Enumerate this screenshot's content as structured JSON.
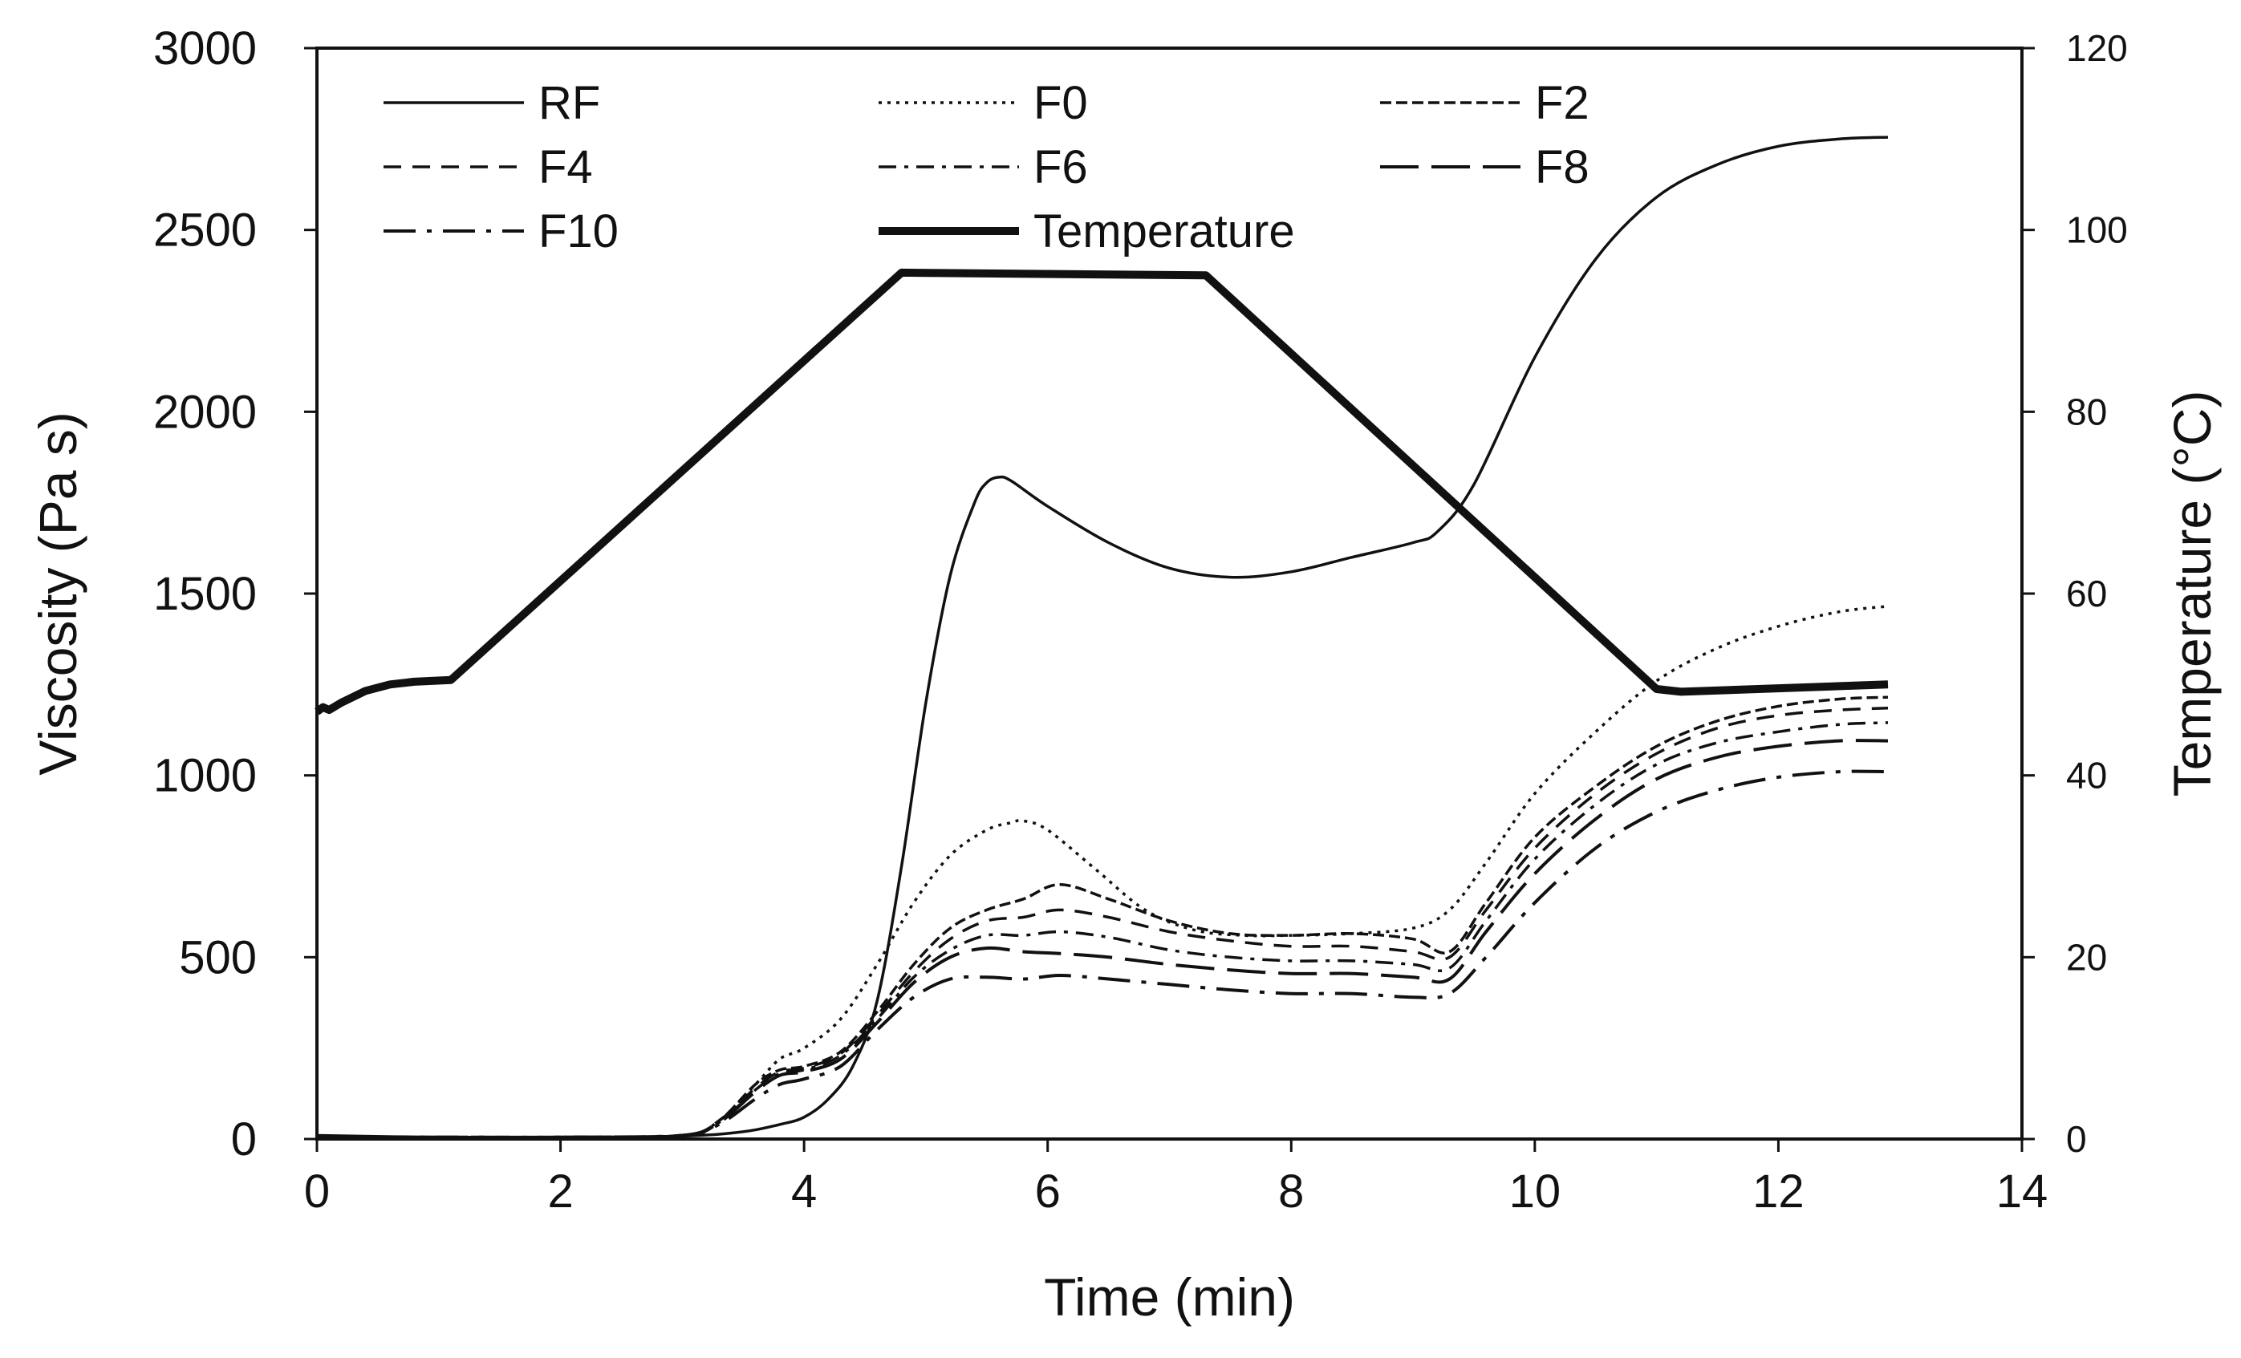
{
  "chart_data": {
    "type": "line",
    "title": "",
    "xlabel": "Time (min)",
    "ylabel": "Viscosity (Pa s)",
    "y2label": "Temperature (°C)",
    "xlim": [
      0,
      14
    ],
    "ylim": [
      0,
      3000
    ],
    "y2lim": [
      0,
      120
    ],
    "xticks": [
      "0",
      "2",
      "4",
      "6",
      "8",
      "10",
      "12",
      "14"
    ],
    "yticks": [
      "0",
      "500",
      "1000",
      "1500",
      "2000",
      "2500",
      "3000"
    ],
    "y2ticks": [
      "0",
      "20",
      "40",
      "60",
      "80",
      "100",
      "120"
    ],
    "grid": false,
    "legend_position": "top-left, inside plot",
    "series": [
      {
        "name": "RF",
        "axis": "left",
        "style": "solid",
        "x": [
          0,
          1,
          2,
          3,
          3.5,
          3.8,
          4,
          4.2,
          4.4,
          4.6,
          4.8,
          5.0,
          5.2,
          5.4,
          5.5,
          5.6,
          5.7,
          6.0,
          6.5,
          7.0,
          7.5,
          8.0,
          8.5,
          9.0,
          9.2,
          9.5,
          10.0,
          10.5,
          11.0,
          11.5,
          12.0,
          12.5,
          12.9
        ],
        "values": [
          10,
          5,
          5,
          8,
          20,
          40,
          60,
          110,
          200,
          380,
          750,
          1200,
          1550,
          1750,
          1805,
          1820,
          1810,
          1740,
          1640,
          1570,
          1545,
          1560,
          1600,
          1640,
          1670,
          1800,
          2150,
          2420,
          2590,
          2680,
          2730,
          2750,
          2755
        ]
      },
      {
        "name": "F0",
        "axis": "left",
        "style": "dotted",
        "x": [
          0,
          1,
          2,
          3,
          3.3,
          3.6,
          3.8,
          4.0,
          4.3,
          4.6,
          4.9,
          5.2,
          5.5,
          5.7,
          5.8,
          6.0,
          6.4,
          6.8,
          7.2,
          7.6,
          8.0,
          8.5,
          9.0,
          9.3,
          9.6,
          10.0,
          10.5,
          11.0,
          11.5,
          12.0,
          12.5,
          12.9
        ],
        "values": [
          5,
          5,
          5,
          10,
          50,
          150,
          220,
          250,
          330,
          480,
          650,
          780,
          850,
          870,
          875,
          850,
          740,
          630,
          575,
          560,
          560,
          565,
          580,
          630,
          760,
          950,
          1120,
          1260,
          1350,
          1410,
          1450,
          1465
        ]
      },
      {
        "name": "F2",
        "axis": "left",
        "style": "short-dash",
        "x": [
          0,
          1,
          2,
          3,
          3.3,
          3.6,
          3.8,
          4.0,
          4.3,
          4.6,
          4.9,
          5.2,
          5.5,
          5.8,
          6.1,
          6.5,
          7.0,
          7.5,
          8.0,
          8.5,
          9.0,
          9.3,
          9.6,
          10.0,
          10.5,
          11.0,
          11.5,
          12.0,
          12.5,
          12.9
        ],
        "values": [
          5,
          5,
          5,
          10,
          50,
          150,
          190,
          200,
          240,
          350,
          480,
          580,
          630,
          660,
          700,
          660,
          600,
          565,
          560,
          565,
          550,
          515,
          650,
          830,
          970,
          1080,
          1150,
          1190,
          1210,
          1215
        ]
      },
      {
        "name": "F4",
        "axis": "left",
        "style": "dash",
        "x": [
          0,
          1,
          2,
          3,
          3.3,
          3.6,
          3.8,
          4.0,
          4.3,
          4.6,
          4.9,
          5.2,
          5.5,
          5.8,
          6.1,
          6.5,
          7.0,
          7.5,
          8.0,
          8.5,
          9.0,
          9.3,
          9.6,
          10.0,
          10.5,
          11.0,
          11.5,
          12.0,
          12.5,
          12.9
        ],
        "values": [
          5,
          5,
          5,
          10,
          50,
          140,
          185,
          195,
          235,
          340,
          460,
          550,
          600,
          610,
          630,
          610,
          570,
          545,
          530,
          530,
          515,
          500,
          630,
          800,
          950,
          1060,
          1130,
          1165,
          1180,
          1185
        ]
      },
      {
        "name": "F6",
        "axis": "left",
        "style": "dash-dot",
        "x": [
          0,
          1,
          2,
          3,
          3.3,
          3.6,
          3.8,
          4.0,
          4.3,
          4.6,
          4.9,
          5.2,
          5.5,
          5.8,
          6.1,
          6.5,
          7.0,
          7.5,
          8.0,
          8.5,
          9.0,
          9.3,
          9.6,
          10.0,
          10.5,
          11.0,
          11.5,
          12.0,
          12.5,
          12.9
        ],
        "values": [
          5,
          5,
          5,
          10,
          45,
          135,
          180,
          190,
          230,
          330,
          445,
          520,
          560,
          560,
          570,
          555,
          520,
          500,
          490,
          490,
          480,
          470,
          600,
          770,
          920,
          1030,
          1090,
          1120,
          1140,
          1145
        ]
      },
      {
        "name": "F8",
        "axis": "left",
        "style": "long-dash",
        "x": [
          0,
          1,
          2,
          3,
          3.3,
          3.6,
          3.8,
          4.0,
          4.3,
          4.6,
          4.9,
          5.2,
          5.5,
          5.8,
          6.1,
          6.5,
          7.0,
          7.5,
          8.0,
          8.5,
          9.0,
          9.3,
          9.6,
          10.0,
          10.5,
          11.0,
          11.5,
          12.0,
          12.5,
          12.9
        ],
        "values": [
          5,
          5,
          5,
          10,
          45,
          130,
          175,
          185,
          220,
          320,
          430,
          500,
          525,
          515,
          510,
          500,
          480,
          465,
          455,
          455,
          445,
          440,
          570,
          730,
          880,
          990,
          1050,
          1080,
          1095,
          1095
        ]
      },
      {
        "name": "F10",
        "axis": "left",
        "style": "long-dash-dot",
        "x": [
          0,
          1,
          2,
          3,
          3.3,
          3.6,
          3.8,
          4.0,
          4.3,
          4.6,
          4.9,
          5.2,
          5.5,
          5.8,
          6.1,
          6.5,
          7.0,
          7.5,
          8.0,
          8.5,
          9.0,
          9.3,
          9.6,
          10.0,
          10.5,
          11.0,
          11.5,
          12.0,
          12.5,
          12.9
        ],
        "values": [
          5,
          5,
          5,
          10,
          40,
          110,
          150,
          165,
          200,
          300,
          390,
          440,
          445,
          440,
          450,
          440,
          425,
          410,
          400,
          400,
          390,
          400,
          500,
          650,
          800,
          900,
          960,
          995,
          1010,
          1010
        ]
      },
      {
        "name": "Temperature",
        "axis": "right",
        "style": "thick-solid",
        "x": [
          0,
          0.05,
          0.1,
          0.2,
          0.4,
          0.6,
          0.8,
          1.1,
          4.8,
          7.3,
          11.0,
          11.2,
          12.9
        ],
        "values": [
          47,
          47.5,
          47.2,
          48,
          49.3,
          50,
          50.3,
          50.5,
          95.3,
          95,
          49.5,
          49.2,
          50
        ]
      }
    ]
  }
}
